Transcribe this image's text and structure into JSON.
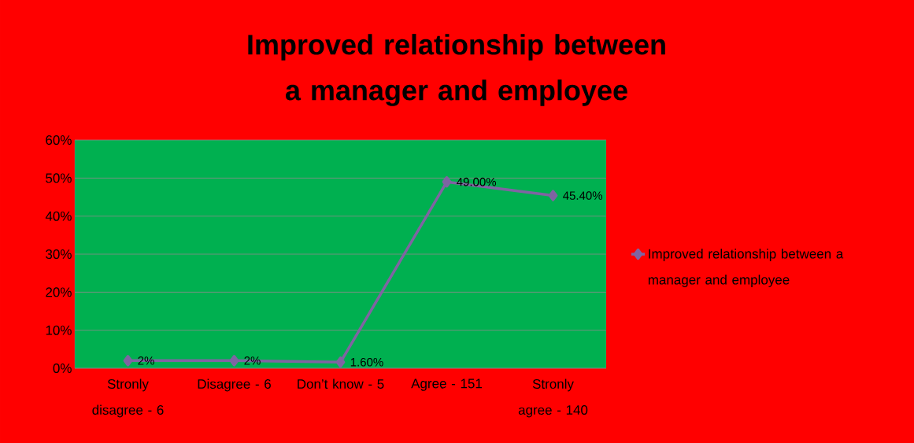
{
  "chart_data": {
    "type": "line",
    "title": "Improved relationship between a manager and employee",
    "categories": [
      "Stronly disagree - 6",
      "Disagree - 6",
      "Don’t know - 5",
      "Agree - 151",
      "Stronly agree  - 140"
    ],
    "series": [
      {
        "name": "Improved relationship between a manager and employee",
        "color": "#7f64a2",
        "values": [
          2,
          2,
          1.6,
          49,
          45.4
        ],
        "value_labels": [
          "2%",
          "2%",
          "1.60%",
          "49.00%",
          "45.40%"
        ]
      }
    ],
    "ylim": [
      0,
      60
    ],
    "yticks": [
      {
        "value": 0,
        "label": "0%"
      },
      {
        "value": 10,
        "label": "10%"
      },
      {
        "value": 20,
        "label": "20%"
      },
      {
        "value": 30,
        "label": "30%"
      },
      {
        "value": 40,
        "label": "40%"
      },
      {
        "value": 50,
        "label": "50%"
      },
      {
        "value": 60,
        "label": "60%"
      }
    ],
    "grid": "y",
    "legend": "right",
    "marker": "diamond"
  }
}
